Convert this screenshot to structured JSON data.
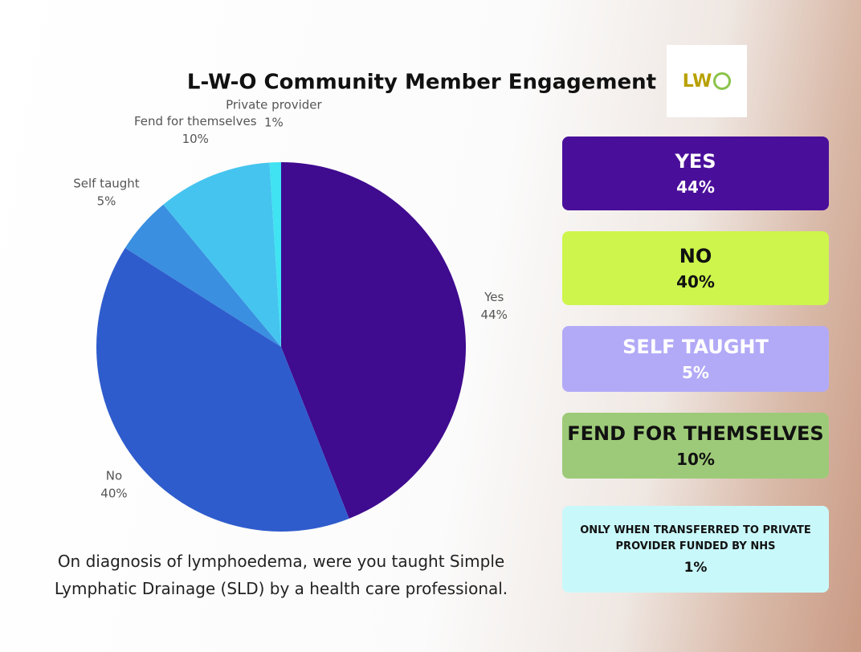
{
  "chart_data": {
    "type": "pie",
    "title": "L-W-O Community Member Engagement",
    "categories": [
      "Yes",
      "No",
      "Self taught",
      "Fend for themselves",
      "Private provider"
    ],
    "values": [
      44,
      40,
      5,
      10,
      1
    ],
    "value_labels": [
      "44%",
      "40%",
      "5%",
      "10%",
      "1%"
    ],
    "colors": [
      "#3f0b8f",
      "#2f5ccc",
      "#3a8fe0",
      "#45c4ef",
      "#3fe3f2"
    ],
    "caption": "On diagnosis of lymphoedema, were you taught Simple Lymphatic Drainage (SLD) by a health care professional."
  },
  "logo": "LW",
  "cards": [
    {
      "title": "YES",
      "value": "44%",
      "color": "#4a0f9a",
      "text_color": "#ffffff"
    },
    {
      "title": "NO",
      "value": "40%",
      "color": "#cdf54c",
      "text_color": "#111111"
    },
    {
      "title": "SELF TAUGHT",
      "value": "5%",
      "color": "#b2aaf7",
      "text_color": "#ffffff"
    },
    {
      "title": "FEND FOR THEMSELVES",
      "value": "10%",
      "color": "#9dca78",
      "text_color": "#111111"
    },
    {
      "title": "ONLY WHEN TRANSFERRED TO PRIVATE PROVIDER FUNDED BY NHS",
      "value": "1%",
      "color": "#c9f8fa",
      "text_color": "#111111"
    }
  ]
}
